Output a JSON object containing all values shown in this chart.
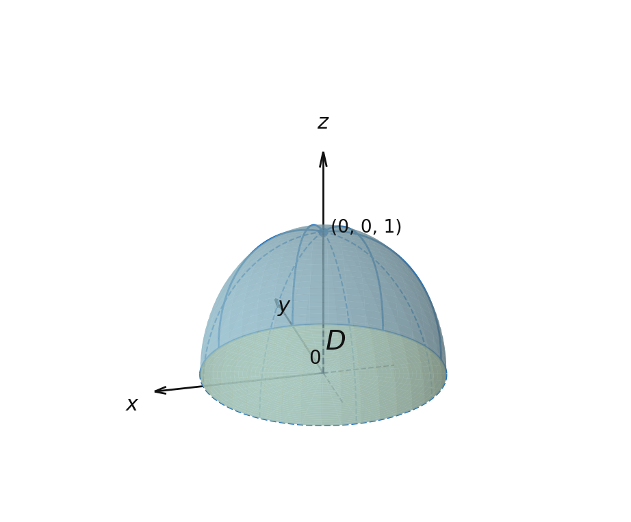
{
  "sphere_color": "#A8D8EA",
  "sphere_alpha": 0.6,
  "sphere_edge_color": "#1E6FBF",
  "disk_color": "#D4D98A",
  "disk_alpha": 0.85,
  "disk_edge_color": "#1E6FBF",
  "axis_color": "#111111",
  "dashed_color": "#111111",
  "point_color": "#2060C0",
  "point_size": 80,
  "label_001": "(0, 0, 1)",
  "label_origin": "0",
  "label_D": "$D$",
  "label_x": "$x$",
  "label_y": "$y$",
  "label_z": "$z$",
  "bg_color": "#ffffff",
  "figsize": [
    9.22,
    7.63
  ],
  "dpi": 100,
  "elev": 22,
  "azim": -105
}
